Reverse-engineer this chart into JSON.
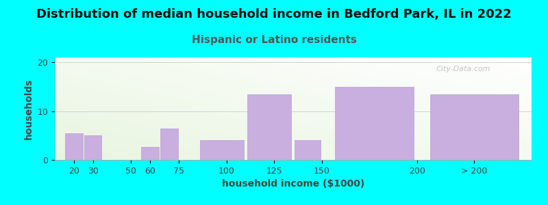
{
  "title": "Distribution of median household income in Bedford Park, IL in 2022",
  "subtitle": "Hispanic or Latino residents",
  "xlabel": "household income ($1000)",
  "ylabel": "households",
  "background_color": "#00FFFF",
  "bar_color": "#c9aee0",
  "bar_edge_color": "#b8a0d8",
  "subtitle_color": "#555555",
  "title_color": "#111111",
  "axis_label_color": "#444444",
  "tick_color": "#444444",
  "watermark": "City-Data.com",
  "categories": [
    "20",
    "30",
    "50",
    "60",
    "75",
    "100",
    "125",
    "150",
    "200",
    "> 200"
  ],
  "values": [
    5.5,
    5.0,
    0,
    2.7,
    6.5,
    4.0,
    13.5,
    4.0,
    15.0,
    13.5
  ],
  "bar_lefts": [
    15,
    25,
    35,
    55,
    65,
    85,
    110,
    135,
    155,
    205
  ],
  "bar_widths": [
    10,
    10,
    10,
    10,
    10,
    25,
    25,
    15,
    45,
    50
  ],
  "ylim": [
    0,
    21
  ],
  "yticks": [
    0,
    10,
    20
  ],
  "title_fontsize": 13,
  "subtitle_fontsize": 11,
  "axis_label_fontsize": 10,
  "tick_fontsize": 9,
  "xlim": [
    10,
    260
  ],
  "xtick_positions": [
    20,
    30,
    50,
    60,
    75,
    100,
    125,
    150,
    200
  ],
  "xtick_labels": [
    "20",
    "30",
    "50",
    "60",
    "75",
    "100",
    "125",
    "150",
    "200"
  ]
}
